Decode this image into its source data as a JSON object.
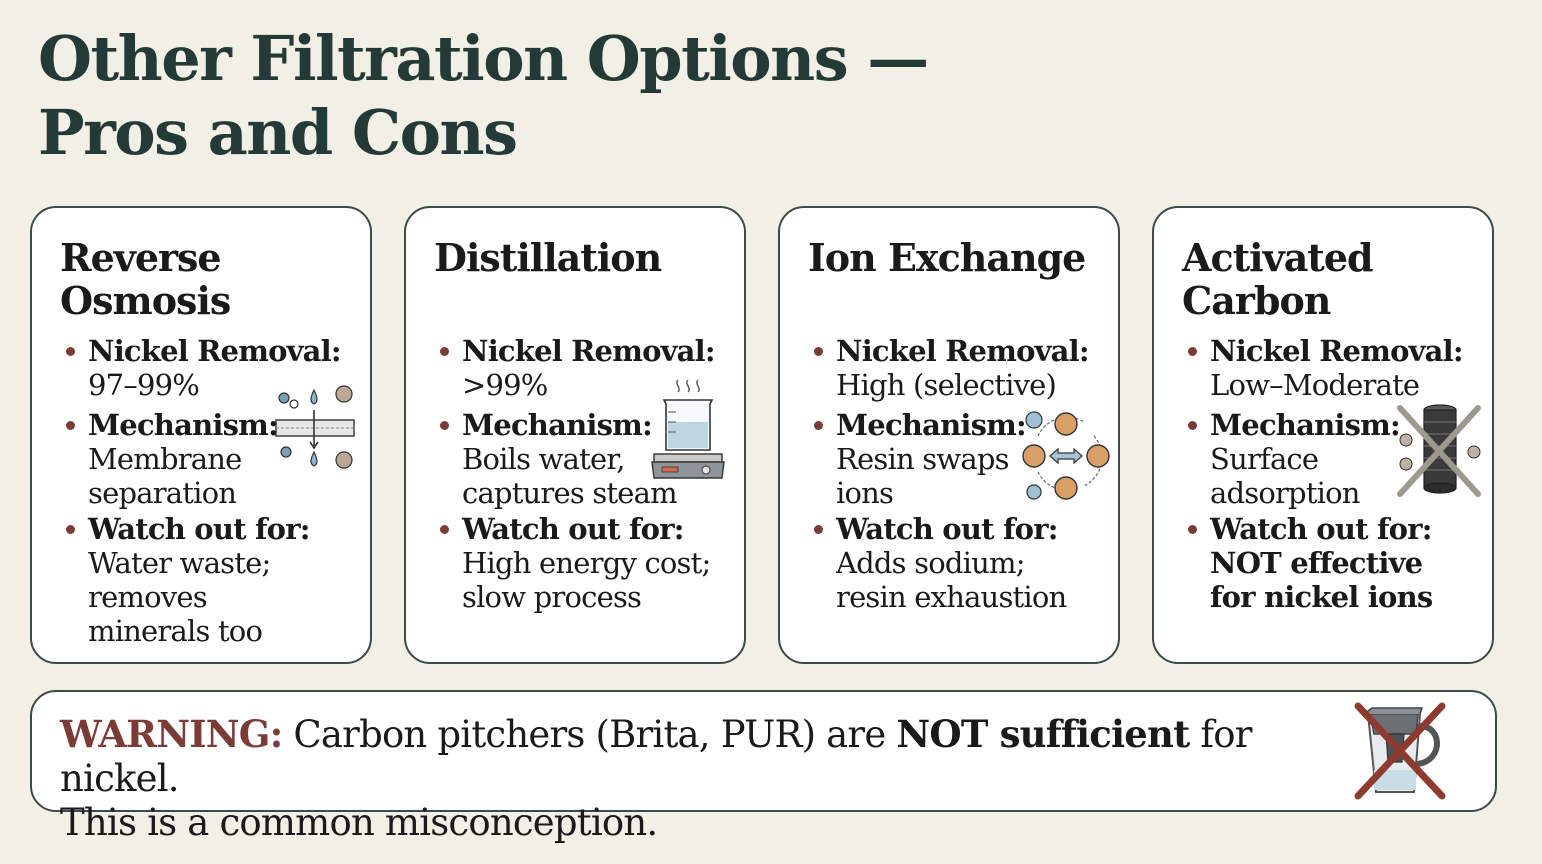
{
  "title": {
    "line1": "Other Filtration Options —",
    "line2": "Pros and Cons"
  },
  "cards": [
    {
      "title_lines": [
        "Reverse",
        "Osmosis"
      ],
      "removal_label": "Nickel Removal:",
      "removal_value": "97–99%",
      "mechanism_label": "Mechanism:",
      "mechanism_value": "Membrane separation",
      "watch_label": "Watch out for:",
      "watch_value": "Water waste; removes minerals too",
      "icon": "membrane-icon"
    },
    {
      "title_lines": [
        "Distillation"
      ],
      "removal_label": "Nickel Removal:",
      "removal_value": ">99%",
      "mechanism_label": "Mechanism:",
      "mechanism_value": "Boils water, captures steam",
      "watch_label": "Watch out for:",
      "watch_value": "High energy cost; slow process",
      "icon": "beaker-hotplate-icon"
    },
    {
      "title_lines": [
        "Ion Exchange"
      ],
      "removal_label": "Nickel Removal:",
      "removal_value": "High (selective)",
      "mechanism_label": "Mechanism:",
      "mechanism_value": "Resin swaps ions",
      "watch_label": "Watch out for:",
      "watch_value": "Adds sodium; resin exhaustion",
      "icon": "ion-swap-icon"
    },
    {
      "title_lines": [
        "Activated",
        "Carbon"
      ],
      "removal_label": "Nickel Removal:",
      "removal_value": "Low–Moderate",
      "mechanism_label": "Mechanism:",
      "mechanism_value": "Surface adsorption",
      "watch_label": "Watch out for:",
      "watch_value": "NOT effective for nickel ions",
      "icon": "carbon-filter-crossed-icon"
    }
  ],
  "warning": {
    "lead": "WARNING:",
    "text1": " Carbon pitchers (Brita, PUR) are ",
    "bold": "NOT sufficient",
    "text2": " for nickel.",
    "line2": "This is a common misconception.",
    "icon": "pitcher-crossed-icon"
  },
  "colors": {
    "background": "#f1efe6",
    "title": "#243a36",
    "accent": "#7d3b36",
    "border": "#3c4a48"
  }
}
